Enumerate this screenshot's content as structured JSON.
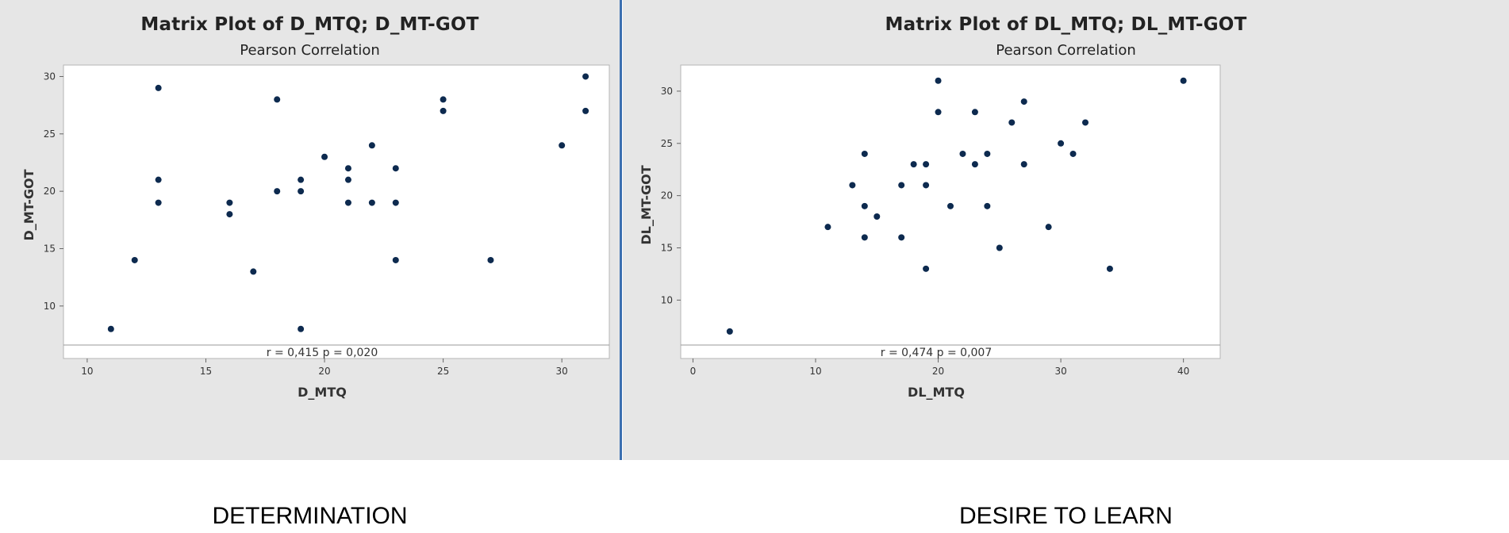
{
  "colors": {
    "panel_bg": "#e6e6e6",
    "plot_bg": "#ffffff",
    "point": "#0d2a4f",
    "divider": "#3b6fb0"
  },
  "chart_data": [
    {
      "type": "scatter",
      "title": "Matrix Plot of D_MTQ; D_MT-GOT",
      "subtitle": "Pearson Correlation",
      "xlabel": "D_MTQ",
      "ylabel": "D_MT-GOT",
      "xlim": [
        9,
        32
      ],
      "ylim": [
        6.6,
        31
      ],
      "xticks": [
        10,
        15,
        20,
        25,
        30
      ],
      "yticks": [
        10,
        15,
        20,
        25,
        30
      ],
      "annotation": "r = 0,415  p = 0,020",
      "points": [
        [
          11,
          8
        ],
        [
          12,
          14
        ],
        [
          13,
          29
        ],
        [
          13,
          21
        ],
        [
          13,
          19
        ],
        [
          16,
          19
        ],
        [
          16,
          18
        ],
        [
          17,
          13
        ],
        [
          18,
          28
        ],
        [
          18,
          20
        ],
        [
          19,
          21
        ],
        [
          19,
          20
        ],
        [
          19,
          8
        ],
        [
          20,
          23
        ],
        [
          21,
          22
        ],
        [
          21,
          21
        ],
        [
          21,
          19
        ],
        [
          22,
          24
        ],
        [
          22,
          19
        ],
        [
          23,
          22
        ],
        [
          23,
          19
        ],
        [
          23,
          14
        ],
        [
          25,
          28
        ],
        [
          25,
          27
        ],
        [
          27,
          14
        ],
        [
          30,
          24
        ],
        [
          31,
          30
        ],
        [
          31,
          27
        ]
      ],
      "caption": "DETERMINATION"
    },
    {
      "type": "scatter",
      "title": "Matrix Plot of DL_MTQ; DL_MT-GOT",
      "subtitle": "Pearson Correlation",
      "xlabel": "DL_MTQ",
      "ylabel": "DL_MT-GOT",
      "xlim": [
        -1,
        43
      ],
      "ylim": [
        5.7,
        32.5
      ],
      "xticks": [
        0,
        10,
        20,
        30,
        40
      ],
      "yticks": [
        10,
        15,
        20,
        25,
        30
      ],
      "annotation": "r = 0,474  p = 0,007",
      "points": [
        [
          3,
          7
        ],
        [
          11,
          17
        ],
        [
          13,
          21
        ],
        [
          14,
          24
        ],
        [
          14,
          19
        ],
        [
          14,
          16
        ],
        [
          15,
          18
        ],
        [
          17,
          21
        ],
        [
          17,
          16
        ],
        [
          18,
          23
        ],
        [
          19,
          23
        ],
        [
          19,
          21
        ],
        [
          19,
          13
        ],
        [
          20,
          31
        ],
        [
          20,
          28
        ],
        [
          21,
          19
        ],
        [
          22,
          24
        ],
        [
          23,
          28
        ],
        [
          23,
          23
        ],
        [
          24,
          24
        ],
        [
          24,
          19
        ],
        [
          25,
          15
        ],
        [
          26,
          27
        ],
        [
          27,
          29
        ],
        [
          27,
          23
        ],
        [
          29,
          17
        ],
        [
          30,
          25
        ],
        [
          31,
          24
        ],
        [
          32,
          27
        ],
        [
          34,
          13
        ],
        [
          40,
          31
        ]
      ],
      "caption": "DESIRE TO LEARN"
    }
  ]
}
